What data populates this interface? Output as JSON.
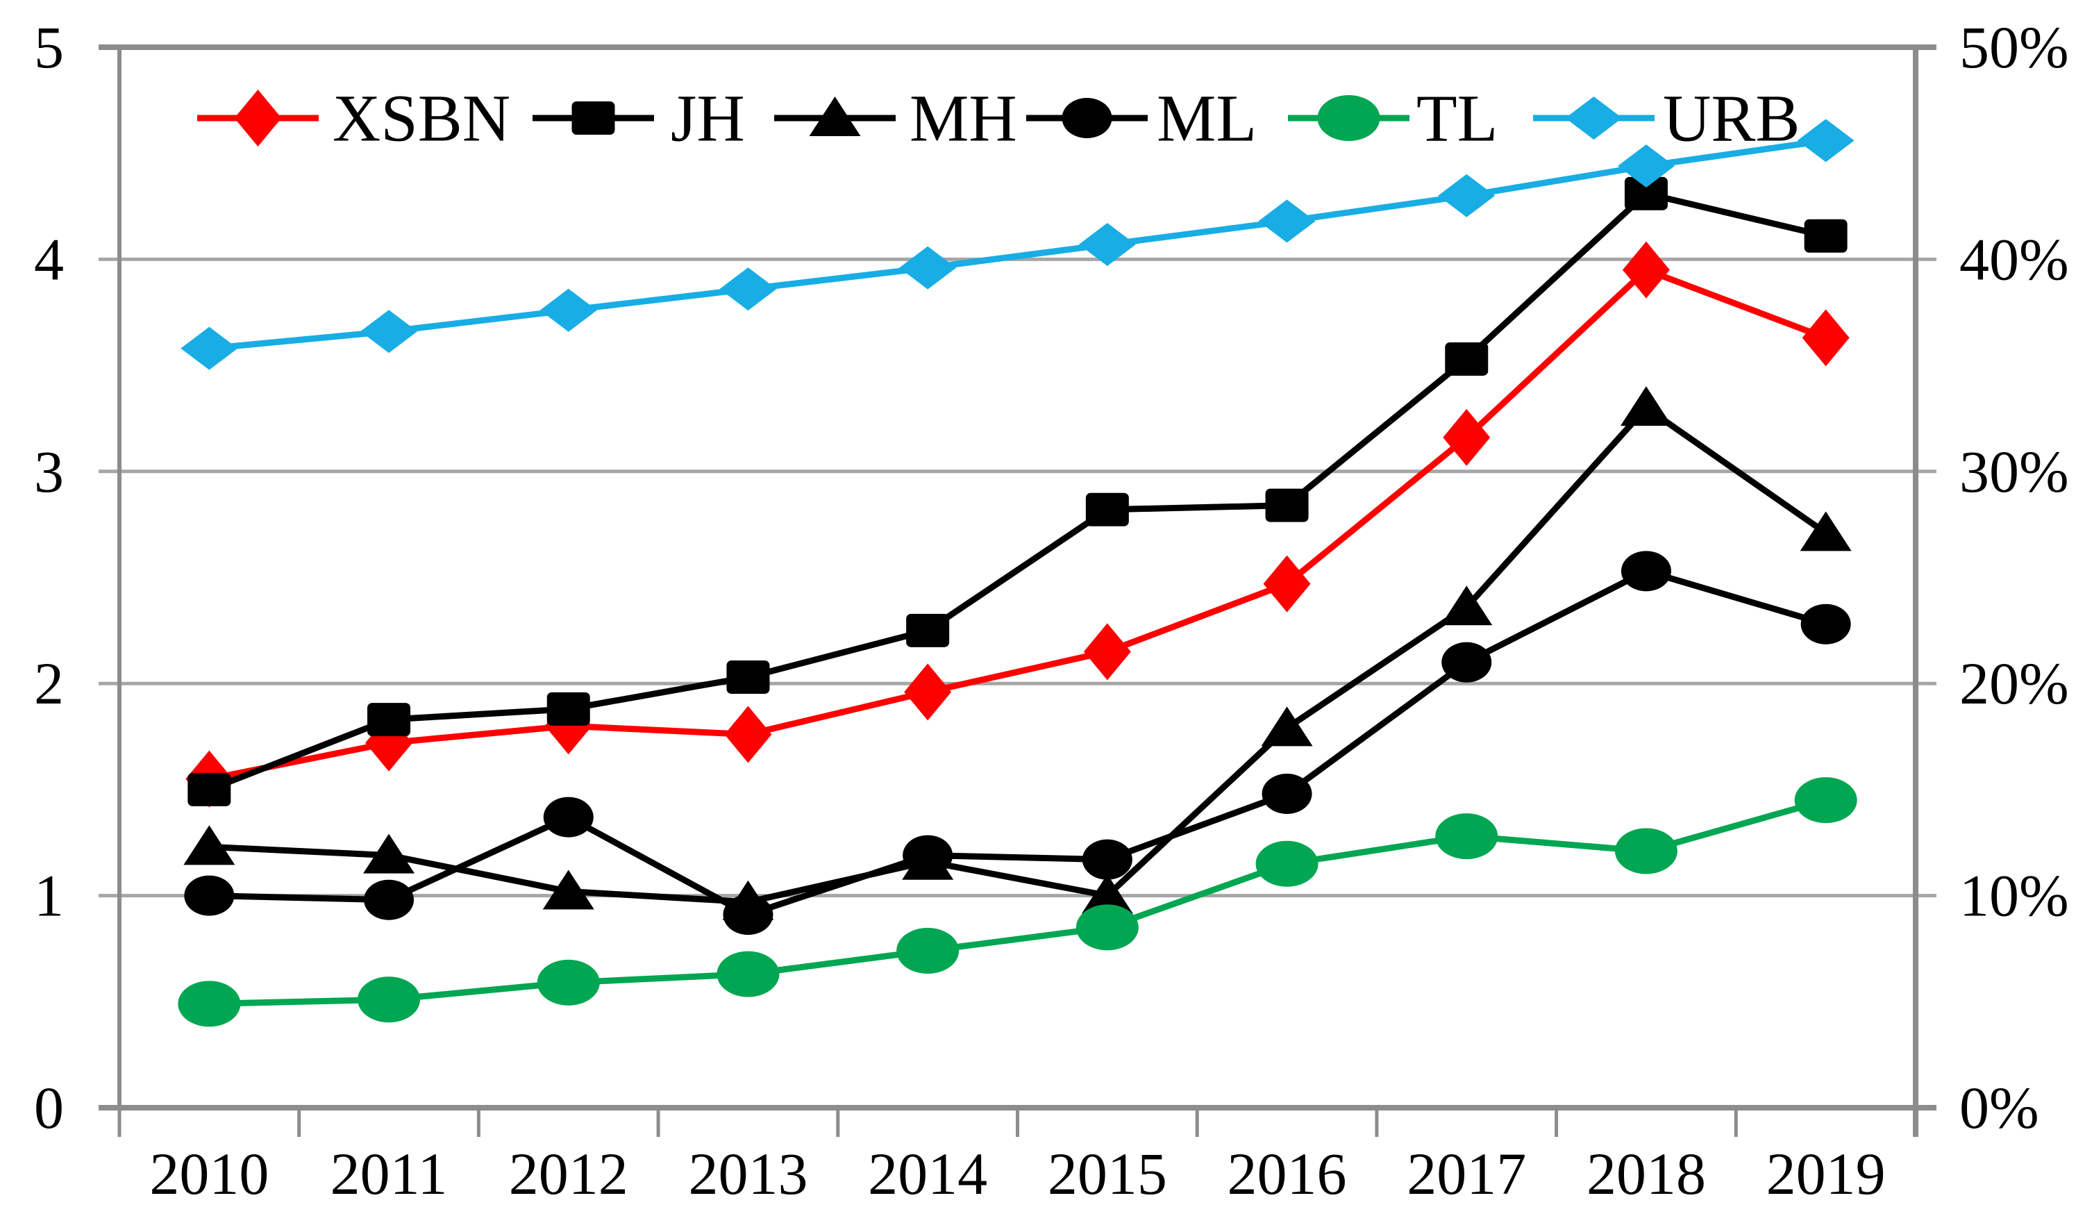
{
  "chart_data": {
    "type": "line",
    "title": "",
    "categories": [
      "2010",
      "2011",
      "2012",
      "2013",
      "2014",
      "2015",
      "2016",
      "2017",
      "2018",
      "2019"
    ],
    "left_axis": {
      "min": 0,
      "max": 5,
      "tick_labels": [
        "0",
        "1",
        "2",
        "3",
        "4",
        "5"
      ]
    },
    "right_axis": {
      "min": 0,
      "max": 50,
      "tick_labels": [
        "0%",
        "10%",
        "20%",
        "30%",
        "40%",
        "50%"
      ]
    },
    "grid": true,
    "legend_position": "top-inside",
    "series": [
      {
        "name": "XSBN",
        "color": "#ff0000",
        "marker": "diamond",
        "axis": "left",
        "values": [
          1.55,
          1.72,
          1.8,
          1.76,
          1.96,
          2.15,
          2.47,
          3.16,
          3.95,
          3.63
        ]
      },
      {
        "name": "JH",
        "color": "#000000",
        "marker": "square",
        "axis": "left",
        "values": [
          1.5,
          1.83,
          1.88,
          2.03,
          2.25,
          2.82,
          2.84,
          3.53,
          4.31,
          4.11
        ]
      },
      {
        "name": "MH",
        "color": "#000000",
        "marker": "triangle",
        "axis": "left",
        "values": [
          1.23,
          1.19,
          1.02,
          0.97,
          1.16,
          1.0,
          1.79,
          2.36,
          3.3,
          2.71
        ]
      },
      {
        "name": "ML",
        "color": "#000000",
        "marker": "circle",
        "axis": "left",
        "values": [
          1.0,
          0.98,
          1.37,
          0.91,
          1.19,
          1.17,
          1.48,
          2.1,
          2.53,
          2.28
        ]
      },
      {
        "name": "TL",
        "color": "#00a651",
        "marker": "circle-large",
        "axis": "left",
        "values": [
          0.49,
          0.51,
          0.59,
          0.63,
          0.74,
          0.85,
          1.15,
          1.28,
          1.21,
          1.45
        ]
      },
      {
        "name": "URB",
        "color": "#18ade4",
        "marker": "diamond-flat",
        "axis": "right",
        "values": [
          35.8,
          36.6,
          37.6,
          38.6,
          39.6,
          40.7,
          41.8,
          43.0,
          44.4,
          45.6
        ]
      }
    ],
    "colors": {
      "grid": "#a6a6a6",
      "axis": "#8c8c8c",
      "text": "#000000",
      "background": "#ffffff"
    }
  }
}
